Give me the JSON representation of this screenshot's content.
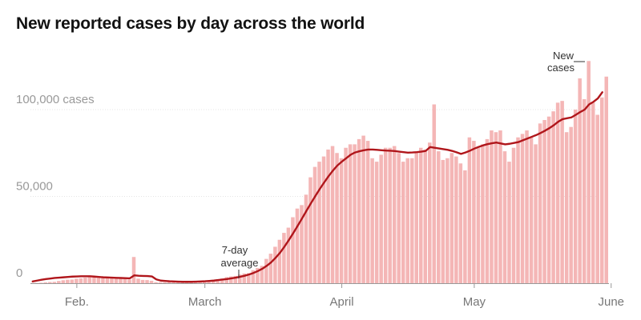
{
  "chart_data": {
    "type": "bar",
    "title": "New reported cases by day across the world",
    "start": "2020-01-22",
    "x_ticks": [
      {
        "label": "Feb.",
        "date": "2020-02-01"
      },
      {
        "label": "March",
        "date": "2020-03-01"
      },
      {
        "label": "April",
        "date": "2020-04-01"
      },
      {
        "label": "May",
        "date": "2020-05-01"
      },
      {
        "label": "June",
        "date": "2020-06-01"
      }
    ],
    "y_ticks": [
      {
        "label": "0",
        "value": 0
      },
      {
        "label": "50,000",
        "value": 50000
      },
      {
        "label": "100,000 cases",
        "value": 100000
      }
    ],
    "ylim": [
      0,
      135000
    ],
    "annotations": {
      "bars_label_line1": "New",
      "bars_label_line2": "cases",
      "line_label_line1": "7-day",
      "line_label_line2": "average"
    },
    "series": [
      {
        "name": "New cases",
        "values": [
          100,
          150,
          250,
          500,
          700,
          800,
          1300,
          1700,
          2000,
          2100,
          2600,
          2800,
          3200,
          3900,
          3700,
          3100,
          3500,
          3800,
          3300,
          2800,
          2500,
          2700,
          2100,
          15100,
          2600,
          1900,
          1800,
          1400,
          600,
          500,
          500,
          800,
          600,
          500,
          300,
          700,
          800,
          1000,
          1200,
          1400,
          1600,
          1900,
          2300,
          2700,
          3500,
          3900,
          4200,
          5000,
          5600,
          5800,
          7500,
          8800,
          10000,
          14000,
          17000,
          21000,
          25000,
          29000,
          32000,
          38000,
          43000,
          45000,
          51000,
          61000,
          67000,
          70000,
          73000,
          77000,
          79000,
          75000,
          72000,
          78000,
          80000,
          80000,
          83000,
          85000,
          82000,
          72000,
          70000,
          74000,
          78000,
          78000,
          79000,
          75000,
          70000,
          72000,
          72000,
          75000,
          78000,
          77000,
          81000,
          103000,
          76000,
          71000,
          72000,
          75000,
          73000,
          69000,
          65000,
          84000,
          82000,
          78000,
          80000,
          83000,
          88000,
          87000,
          88000,
          76000,
          70000,
          78000,
          84000,
          86000,
          88000,
          84000,
          80000,
          92000,
          94000,
          96000,
          99000,
          104000,
          105000,
          87000,
          90000,
          100000,
          118000,
          106000,
          128000,
          104000,
          97000,
          107000,
          119000
        ]
      },
      {
        "name": "7-day average",
        "values": [
          1000,
          1500,
          2000,
          2400,
          2700,
          3000,
          3200,
          3400,
          3600,
          3800,
          3900,
          4000,
          4000,
          4000,
          3800,
          3600,
          3400,
          3300,
          3200,
          3100,
          3000,
          2900,
          2800,
          4500,
          4300,
          4200,
          4100,
          3900,
          2200,
          1500,
          1300,
          1100,
          1000,
          900,
          800,
          800,
          800,
          900,
          1000,
          1100,
          1300,
          1500,
          1800,
          2100,
          2400,
          2800,
          3200,
          3700,
          4300,
          5000,
          5900,
          7000,
          8300,
          10000,
          12000,
          14600,
          17500,
          21000,
          24800,
          28800,
          33000,
          37300,
          41700,
          46000,
          50200,
          54200,
          58000,
          61600,
          64900,
          67800,
          70000,
          72000,
          74000,
          75300,
          76000,
          76600,
          77000,
          77000,
          76800,
          76600,
          76400,
          76300,
          76100,
          75800,
          75500,
          75200,
          75300,
          75500,
          75800,
          76200,
          78400,
          78000,
          77600,
          77200,
          76800,
          76200,
          75400,
          74500,
          75300,
          76300,
          77500,
          78500,
          79400,
          80100,
          80600,
          81000,
          80500,
          80000,
          80300,
          80800,
          81300,
          82300,
          83300,
          84300,
          85300,
          86500,
          87800,
          89300,
          91000,
          93000,
          94500,
          95000,
          95500,
          97000,
          98600,
          100000,
          103000,
          104500,
          106500,
          110000
        ]
      }
    ]
  }
}
